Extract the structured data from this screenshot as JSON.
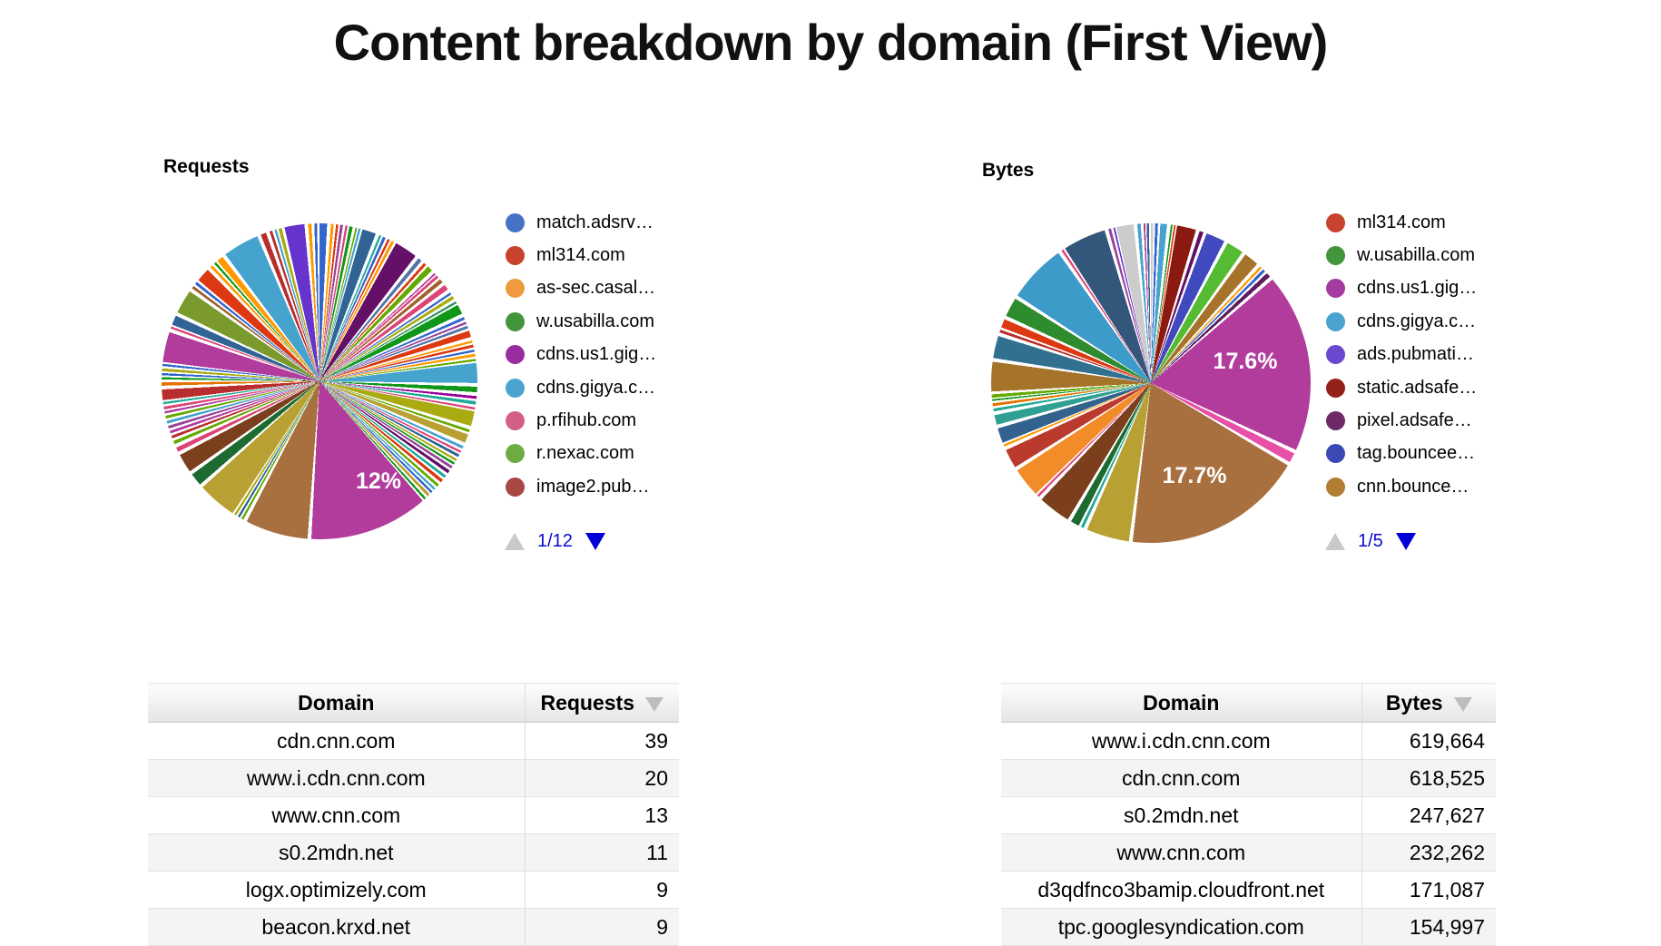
{
  "ui": {
    "title": "Content breakdown by domain (First View)"
  },
  "chart_data": [
    {
      "type": "pie",
      "title": "Requests",
      "legend_page": "1/12",
      "legend": [
        {
          "label": "match.adsrv…",
          "color": "#4473C5"
        },
        {
          "label": "ml314.com",
          "color": "#C8432E"
        },
        {
          "label": "as-sec.casal…",
          "color": "#EF9A3F"
        },
        {
          "label": "w.usabilla.com",
          "color": "#43953B"
        },
        {
          "label": "cdns.us1.gig…",
          "color": "#9A2D9E"
        },
        {
          "label": "cdns.gigya.c…",
          "color": "#4BA3CF"
        },
        {
          "label": "p.rfihub.com",
          "color": "#D35F87"
        },
        {
          "label": "r.nexac.com",
          "color": "#6FAB43"
        },
        {
          "label": "image2.pub…",
          "color": "#A84743"
        }
      ],
      "labeled_slices": [
        {
          "label": "12%",
          "value": 12
        }
      ],
      "slices": [
        [
          1.1,
          "#3366CC"
        ],
        [
          0.5,
          "#FF9900"
        ],
        [
          0.4,
          "#DC3912"
        ],
        [
          0.5,
          "#994499"
        ],
        [
          0.4,
          "#DD4477"
        ],
        [
          0.6,
          "#109618"
        ],
        [
          0.3,
          "#66AA00"
        ],
        [
          0.4,
          "#45A3CE"
        ],
        [
          1.7,
          "#316395"
        ],
        [
          0.4,
          "#22AA99"
        ],
        [
          0.5,
          "#3366CC"
        ],
        [
          0.4,
          "#DC3912"
        ],
        [
          0.5,
          "#FF9900"
        ],
        [
          2.6,
          "#651067"
        ],
        [
          0.7,
          "#5574A6"
        ],
        [
          0.5,
          "#DC3912"
        ],
        [
          0.9,
          "#66AA00"
        ],
        [
          0.3,
          "#B13C9C"
        ],
        [
          0.5,
          "#DD4477"
        ],
        [
          0.7,
          "#A0622D"
        ],
        [
          0.9,
          "#DD4477"
        ],
        [
          0.4,
          "#3366CC"
        ],
        [
          0.6,
          "#AAAA11"
        ],
        [
          0.4,
          "#329262"
        ],
        [
          1.3,
          "#109618"
        ],
        [
          0.5,
          "#3366CC"
        ],
        [
          0.4,
          "#994499"
        ],
        [
          0.5,
          "#5574A6"
        ],
        [
          1.0,
          "#DC3912"
        ],
        [
          0.4,
          "#FF9900"
        ],
        [
          0.5,
          "#DC3912"
        ],
        [
          0.4,
          "#3366CC"
        ],
        [
          0.5,
          "#FF9900"
        ],
        [
          0.4,
          "#66AA00"
        ],
        [
          2.3,
          "#45A3CE"
        ],
        [
          0.9,
          "#109618"
        ],
        [
          0.5,
          "#990099"
        ],
        [
          0.6,
          "#22AA99"
        ],
        [
          0.4,
          "#DD4477"
        ],
        [
          1.8,
          "#AAAA11"
        ],
        [
          0.5,
          "#66AA00"
        ],
        [
          1.2,
          "#B8A032"
        ],
        [
          0.5,
          "#45A3CE"
        ],
        [
          0.4,
          "#DD4477"
        ],
        [
          0.5,
          "#316395"
        ],
        [
          0.4,
          "#AAAA11"
        ],
        [
          0.4,
          "#109618"
        ],
        [
          0.5,
          "#994499"
        ],
        [
          0.6,
          "#651067"
        ],
        [
          0.5,
          "#22AA99"
        ],
        [
          0.6,
          "#DC3912"
        ],
        [
          0.5,
          "#66AA00"
        ],
        [
          0.4,
          "#45A3CE"
        ],
        [
          0.4,
          "#3366CC"
        ],
        [
          0.5,
          "#B8A032"
        ],
        [
          0.4,
          "#109618"
        ],
        [
          12.0,
          "#B13C9C"
        ],
        [
          6.5,
          "#A9703F"
        ],
        [
          0.4,
          "#66AA00"
        ],
        [
          0.4,
          "#316395"
        ],
        [
          0.4,
          "#AAAA11"
        ],
        [
          4.2,
          "#B8A032"
        ],
        [
          1.6,
          "#1D6B30"
        ],
        [
          2.2,
          "#7B3F1E"
        ],
        [
          0.8,
          "#DD4477"
        ],
        [
          0.6,
          "#66AA00"
        ],
        [
          0.5,
          "#B82E2E"
        ],
        [
          0.5,
          "#B13C9C"
        ],
        [
          0.5,
          "#994499"
        ],
        [
          0.5,
          "#45A3CE"
        ],
        [
          0.5,
          "#66AA00"
        ],
        [
          0.4,
          "#B13C9C"
        ],
        [
          0.5,
          "#DD4477"
        ],
        [
          0.4,
          "#22AA99"
        ],
        [
          1.4,
          "#B82E2E"
        ],
        [
          0.6,
          "#E67300"
        ],
        [
          0.4,
          "#109618"
        ],
        [
          0.4,
          "#3366CC"
        ],
        [
          0.5,
          "#AAAA11"
        ],
        [
          0.4,
          "#3366CC"
        ],
        [
          3.3,
          "#B13C9C"
        ],
        [
          0.4,
          "#DD4477"
        ],
        [
          1.3,
          "#316395"
        ],
        [
          2.7,
          "#7A9A2E"
        ],
        [
          0.5,
          "#A0622D"
        ],
        [
          0.5,
          "#3366CC"
        ],
        [
          1.7,
          "#DC3912"
        ],
        [
          0.5,
          "#FF9900"
        ],
        [
          0.4,
          "#109618"
        ],
        [
          1.0,
          "#FF9900"
        ],
        [
          3.9,
          "#45A3CE"
        ],
        [
          0.9,
          "#B82E2E"
        ],
        [
          0.5,
          "#B82E2E"
        ],
        [
          0.4,
          "#45A3CE"
        ],
        [
          0.6,
          "#AAAA11"
        ],
        [
          2.3,
          "#6633CC"
        ],
        [
          0.6,
          "#FF9900"
        ],
        [
          0.5,
          "#3366CC"
        ]
      ]
    },
    {
      "type": "pie",
      "title": "Bytes",
      "legend_page": "1/5",
      "legend": [
        {
          "label": "ml314.com",
          "color": "#C8432E"
        },
        {
          "label": "w.usabilla.com",
          "color": "#43953B"
        },
        {
          "label": "cdns.us1.gig…",
          "color": "#A43BA0"
        },
        {
          "label": "cdns.gigya.c…",
          "color": "#4BA3CF"
        },
        {
          "label": "ads.pubmati…",
          "color": "#6A49CE"
        },
        {
          "label": "static.adsafe…",
          "color": "#94211A"
        },
        {
          "label": "pixel.adsafe…",
          "color": "#6D2A67"
        },
        {
          "label": "tag.bouncee…",
          "color": "#3A49B4"
        },
        {
          "label": "cnn.bounce…",
          "color": "#B07D33"
        }
      ],
      "labeled_slices": [
        {
          "label": "17.6%",
          "value": 17.6
        },
        {
          "label": "17.7%",
          "value": 17.7
        }
      ],
      "slices": [
        [
          0.4,
          "#CCCCCC"
        ],
        [
          0.5,
          "#3366CC"
        ],
        [
          1.0,
          "#45A3CE"
        ],
        [
          0.3,
          "#109618"
        ],
        [
          0.3,
          "#DC3912"
        ],
        [
          2.2,
          "#8B1A10"
        ],
        [
          0.7,
          "#651067"
        ],
        [
          2.2,
          "#4149BE"
        ],
        [
          2.0,
          "#55BB33"
        ],
        [
          1.8,
          "#A5742A"
        ],
        [
          0.4,
          "#FF9900"
        ],
        [
          0.5,
          "#3366CC"
        ],
        [
          0.8,
          "#5E1D5B"
        ],
        [
          17.6,
          "#B13C9C"
        ],
        [
          1.3,
          "#E84FA6"
        ],
        [
          17.7,
          "#A9703F"
        ],
        [
          4.5,
          "#B8A032"
        ],
        [
          0.5,
          "#22AA99"
        ],
        [
          1.2,
          "#1D6B30"
        ],
        [
          3.5,
          "#7B3F1E"
        ],
        [
          0.4,
          "#DD4477"
        ],
        [
          3.2,
          "#F28C28"
        ],
        [
          2.2,
          "#BB3A2E"
        ],
        [
          0.4,
          "#FF9900"
        ],
        [
          1.8,
          "#33628F"
        ],
        [
          1.3,
          "#2FA092"
        ],
        [
          0.5,
          "#22AA99"
        ],
        [
          0.5,
          "#E67300"
        ],
        [
          0.3,
          "#109618"
        ],
        [
          0.6,
          "#66AA00"
        ],
        [
          3.2,
          "#A5742A"
        ],
        [
          2.5,
          "#31708F"
        ],
        [
          0.5,
          "#B82E2E"
        ],
        [
          1.2,
          "#DC3912"
        ],
        [
          2.2,
          "#2E8B2E"
        ],
        [
          6.0,
          "#3D9BC9"
        ],
        [
          0.4,
          "#DD4477"
        ],
        [
          4.5,
          "#33577B"
        ],
        [
          0.5,
          "#994499"
        ],
        [
          0.3,
          "#6633CC"
        ],
        [
          2.0,
          "#CCCCCC"
        ],
        [
          0.6,
          "#45A3CE"
        ],
        [
          0.3,
          "#B13C9C"
        ],
        [
          0.4,
          "#316395"
        ]
      ]
    },
    {
      "type": "table",
      "title": "Requests by domain",
      "columns": [
        "Domain",
        "Requests"
      ],
      "sorted_column": "Requests",
      "rows": [
        [
          "cdn.cnn.com",
          "39"
        ],
        [
          "www.i.cdn.cnn.com",
          "20"
        ],
        [
          "www.cnn.com",
          "13"
        ],
        [
          "s0.2mdn.net",
          "11"
        ],
        [
          "logx.optimizely.com",
          "9"
        ],
        [
          "beacon.krxd.net",
          "9"
        ]
      ]
    },
    {
      "type": "table",
      "title": "Bytes by domain",
      "columns": [
        "Domain",
        "Bytes"
      ],
      "sorted_column": "Bytes",
      "rows": [
        [
          "www.i.cdn.cnn.com",
          "619,664"
        ],
        [
          "cdn.cnn.com",
          "618,525"
        ],
        [
          "s0.2mdn.net",
          "247,627"
        ],
        [
          "www.cnn.com",
          "232,262"
        ],
        [
          "d3qdfnco3bamip.cloudfront.net",
          "171,087"
        ],
        [
          "tpc.googlesyndication.com",
          "154,997"
        ]
      ]
    }
  ]
}
